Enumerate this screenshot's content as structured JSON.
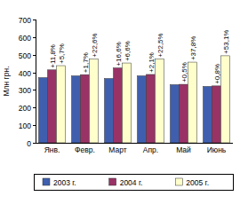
{
  "chart_data": {
    "type": "bar",
    "y_label": "Млн грн.",
    "categories": [
      "Янв.",
      "Февр.",
      "Март",
      "Апр.",
      "Май",
      "Июнь"
    ],
    "series": [
      {
        "name": "2003 г.",
        "color": "#3f5fae",
        "values": [
          370,
          380,
          365,
          380,
          330,
          320
        ]
      },
      {
        "name": "2004 г.",
        "color": "#993366",
        "values": [
          414,
          387,
          425,
          388,
          332,
          323
        ],
        "change_labels": [
          "+11,8%",
          "+1,7%",
          "+16,6%",
          "+2,1%",
          "+0,5%",
          "+0,8%"
        ]
      },
      {
        "name": "2005 г.",
        "color": "#ffffcc",
        "values": [
          438,
          475,
          453,
          475,
          458,
          494
        ],
        "change_labels": [
          "+5,7%",
          "+22,6%",
          "+6,6%",
          "+22,5%",
          "+37,8%",
          "+53,1%"
        ]
      }
    ],
    "ylim": [
      0,
      700
    ],
    "yticks": [
      0,
      100,
      200,
      300,
      400,
      500,
      600,
      700
    ],
    "grid": false,
    "legend": "bottom"
  }
}
